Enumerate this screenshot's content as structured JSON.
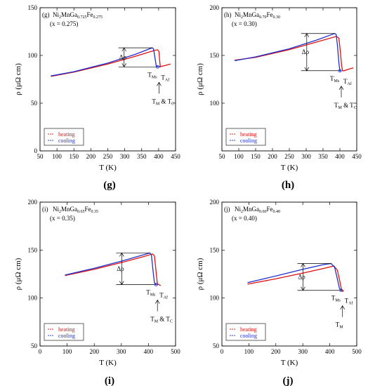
{
  "chart_data": [
    {
      "type": "line",
      "panel": "(g)",
      "caption": "(g)",
      "formula": {
        "base": "Ni",
        "s1": "2",
        "mid": "MnGa",
        "s2": "0.725",
        "tail": "Fe",
        "s3": "0.275"
      },
      "xnote": "(x = 0.275)",
      "xlabel": "T (K)",
      "ylabel": "ρ (μΩ cm)",
      "xlim": [
        50,
        450
      ],
      "ylim": [
        0,
        150
      ],
      "xticks": [
        50,
        100,
        150,
        200,
        250,
        300,
        350,
        400,
        450
      ],
      "yticks": [
        0,
        50,
        100,
        150
      ],
      "series": [
        {
          "name": "heating",
          "color": "#e01010",
          "x": [
            82,
            150,
            250,
            330,
            385,
            397,
            401,
            403,
            405,
            408,
            420,
            435
          ],
          "y": [
            78,
            82.5,
            91,
            99,
            105,
            106,
            104,
            95,
            88,
            88.5,
            89.5,
            91
          ]
        },
        {
          "name": "cooling",
          "color": "#2030d0",
          "x": [
            82,
            150,
            250,
            330,
            381,
            385,
            389,
            393,
            397,
            405
          ],
          "y": [
            78.5,
            83,
            92,
            101,
            108,
            107,
            98,
            89,
            88,
            88.5
          ]
        }
      ],
      "annotations": {
        "drho": "Δρ",
        "tms": "T",
        "tms_sub": "Ms",
        "taf": "T",
        "taf_sub": "Af",
        "arrow_label": "T",
        "arrow_sub": "M",
        "arrow_tail": " & T",
        "arrow_tail_sub": "C"
      }
    },
    {
      "type": "line",
      "panel": "(h)",
      "caption": "(h)",
      "formula": {
        "base": "Ni",
        "s1": "2",
        "mid": "MnGa",
        "s2": "0.70",
        "tail": "Fe",
        "s3": "0.30"
      },
      "xnote": "(x = 0.30)",
      "xlabel": "T (K)",
      "ylabel": "ρ (μΩ cm)",
      "xlim": [
        50,
        450
      ],
      "ylim": [
        50,
        200
      ],
      "xticks": [
        50,
        100,
        150,
        200,
        250,
        300,
        350,
        400,
        450
      ],
      "yticks": [
        100,
        150,
        200
      ],
      "series": [
        {
          "name": "heating",
          "color": "#e01010",
          "x": [
            88,
            150,
            250,
            330,
            390,
            397,
            401,
            405,
            408,
            412,
            430,
            440
          ],
          "y": [
            145,
            148,
            156,
            164,
            170,
            168,
            155,
            140,
            134,
            134,
            136,
            137
          ]
        },
        {
          "name": "cooling",
          "color": "#2030d0",
          "x": [
            88,
            150,
            250,
            330,
            385,
            389,
            393,
            397,
            400,
            405
          ],
          "y": [
            144.5,
            148.5,
            157,
            166,
            173,
            172,
            160,
            142,
            134,
            134
          ]
        }
      ],
      "annotations": {
        "drho": "Δρ",
        "tms": "T",
        "tms_sub": "Ms",
        "taf": "T",
        "taf_sub": "Af",
        "arrow_label": "T",
        "arrow_sub": "M",
        "arrow_tail": " & T",
        "arrow_tail_sub": "C"
      }
    },
    {
      "type": "line",
      "panel": "(i)",
      "caption": "(i)",
      "formula": {
        "base": "Ni",
        "s1": "2",
        "mid": "MnGa",
        "s2": "0.65",
        "tail": "Fe",
        "s3": "0.35"
      },
      "xnote": "(x = 0.35)",
      "xlabel": "T (K)",
      "ylabel": "ρ (μΩ cm)",
      "xlim": [
        0,
        500
      ],
      "ylim": [
        50,
        200
      ],
      "xticks": [
        0,
        100,
        200,
        300,
        400,
        500
      ],
      "yticks": [
        50,
        100,
        150,
        200
      ],
      "series": [
        {
          "name": "heating",
          "color": "#e01010",
          "x": [
            92,
            200,
            300,
            380,
            415,
            422,
            428,
            433,
            438,
            445
          ],
          "y": [
            123.5,
            130,
            137,
            143,
            146,
            144,
            128,
            115,
            114,
            113
          ]
        },
        {
          "name": "cooling",
          "color": "#2030d0",
          "x": [
            92,
            200,
            300,
            380,
            405,
            411,
            417,
            422,
            428,
            435
          ],
          "y": [
            124,
            131,
            138.5,
            145,
            147,
            145,
            128,
            116,
            114,
            114
          ]
        }
      ],
      "annotations": {
        "drho": "Δρ",
        "tms": "T",
        "tms_sub": "Ms",
        "taf": "T",
        "taf_sub": "Af",
        "arrow_label": "T",
        "arrow_sub": "M",
        "arrow_tail": " & T",
        "arrow_tail_sub": "C"
      }
    },
    {
      "type": "line",
      "panel": "(j)",
      "caption": "(j)",
      "formula": {
        "base": "Ni",
        "s1": "2",
        "mid": "MnGa",
        "s2": "0.60",
        "tail": "Fe",
        "s3": "0.40"
      },
      "xnote": "(x = 0.40)",
      "xlabel": "T (K)",
      "ylabel": "ρ (μΩ cm)",
      "xlim": [
        0,
        500
      ],
      "ylim": [
        50,
        200
      ],
      "xticks": [
        0,
        100,
        200,
        300,
        400,
        500
      ],
      "yticks": [
        50,
        100,
        150,
        200
      ],
      "series": [
        {
          "name": "heating",
          "color": "#e01010",
          "x": [
            95,
            200,
            300,
            380,
            415,
            428,
            437,
            444,
            448,
            452
          ],
          "y": [
            114.5,
            120,
            126,
            131,
            133.5,
            129,
            118,
            108,
            107,
            108
          ]
        },
        {
          "name": "cooling",
          "color": "#2030d0",
          "x": [
            95,
            200,
            300,
            380,
            405,
            418,
            428,
            436,
            442,
            447
          ],
          "y": [
            116,
            123,
            130,
            135,
            136,
            132,
            120,
            110,
            108,
            108
          ]
        }
      ],
      "annotations": {
        "drho": "Δρ",
        "tms": "T",
        "tms_sub": "Ms",
        "taf": "T",
        "taf_sub": "Af",
        "arrow_label": "T",
        "arrow_sub": "M",
        "arrow_tail": "",
        "arrow_tail_sub": ""
      }
    }
  ]
}
